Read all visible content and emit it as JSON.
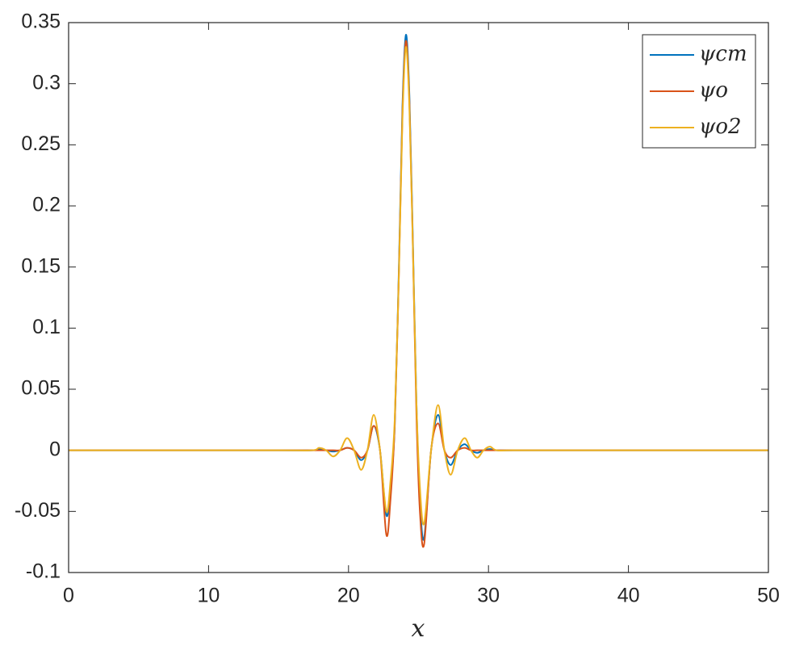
{
  "chart_data": {
    "type": "line",
    "x_label": "x",
    "x": [
      0,
      15,
      17.4,
      17.9,
      18.4,
      18.9,
      19.4,
      19.9,
      20.4,
      20.9,
      21.35,
      21.8,
      22.25,
      22.7,
      23.0,
      23.3,
      23.6,
      23.85,
      24.1,
      24.35,
      24.6,
      24.85,
      25.1,
      25.4,
      25.9,
      26.4,
      26.85,
      27.3,
      27.8,
      28.3,
      28.75,
      29.2,
      29.65,
      30.1,
      30.6,
      32,
      50
    ],
    "series": [
      {
        "name": "ψcm",
        "color": "#0072BD",
        "values": [
          0,
          0,
          0,
          0.001,
          0,
          -0.001,
          0,
          0.002,
          0,
          -0.008,
          0,
          0.02,
          0,
          -0.053,
          -0.03,
          0.02,
          0.15,
          0.28,
          0.34,
          0.29,
          0.17,
          0.04,
          -0.04,
          -0.072,
          0,
          0.029,
          0,
          -0.012,
          0,
          0.005,
          0,
          -0.002,
          0,
          0.001,
          0,
          0,
          0
        ]
      },
      {
        "name": "ψo",
        "color": "#D95319",
        "values": [
          0,
          0,
          0,
          0,
          0,
          0,
          0,
          0.002,
          0,
          -0.006,
          0,
          0.02,
          0,
          -0.069,
          -0.04,
          0.02,
          0.145,
          0.275,
          0.335,
          0.285,
          0.165,
          0.03,
          -0.05,
          -0.077,
          0,
          0.022,
          0,
          -0.006,
          0,
          0.002,
          0,
          0,
          0,
          0,
          0,
          0,
          0
        ]
      },
      {
        "name": "ψo2",
        "color": "#EDB120",
        "values": [
          0,
          0,
          0,
          0.002,
          0,
          -0.005,
          0,
          0.01,
          0,
          -0.016,
          0,
          0.029,
          0,
          -0.05,
          -0.025,
          0.025,
          0.145,
          0.27,
          0.33,
          0.28,
          0.165,
          0.04,
          -0.03,
          -0.06,
          0,
          0.037,
          0,
          -0.02,
          0,
          0.01,
          0,
          -0.006,
          0,
          0.003,
          0,
          0,
          0
        ]
      }
    ],
    "xlim": [
      0,
      50
    ],
    "xticks": [
      0,
      10,
      20,
      30,
      40,
      50
    ],
    "ylim": [
      -0.1,
      0.35
    ],
    "yticks": [
      -0.1,
      -0.05,
      0,
      0.05,
      0.1,
      0.15,
      0.2,
      0.25,
      0.3,
      0.35
    ],
    "legend": "top-right"
  }
}
